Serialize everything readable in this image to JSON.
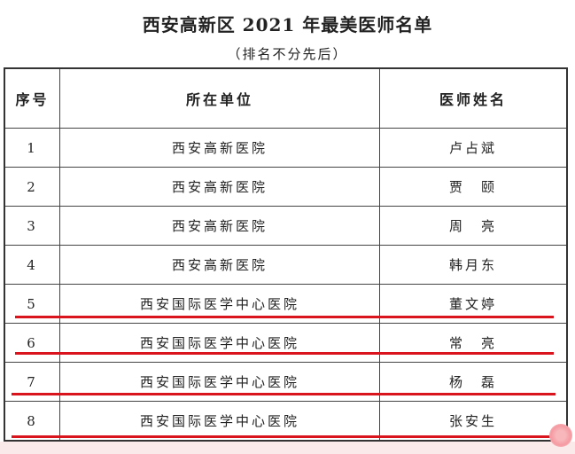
{
  "title": "西安高新区 2021 年最美医师名单",
  "subtitle": "（排名不分先后）",
  "table": {
    "headers": [
      "序号",
      "所在单位",
      "医师姓名"
    ],
    "rows": [
      [
        "1",
        "西安高新医院",
        "卢占斌"
      ],
      [
        "2",
        "西安高新医院",
        "贾　颐"
      ],
      [
        "3",
        "西安高新医院",
        "周　亮"
      ],
      [
        "4",
        "西安高新医院",
        "韩月东"
      ],
      [
        "5",
        "西安国际医学中心医院",
        "董文婷"
      ],
      [
        "6",
        "西安国际医学中心医院",
        "常　亮"
      ],
      [
        "7",
        "西安国际医学中心医院",
        "杨　磊"
      ],
      [
        "8",
        "西安国际医学中心医院",
        "张安生"
      ]
    ]
  },
  "highlight_color": "#d9141c"
}
